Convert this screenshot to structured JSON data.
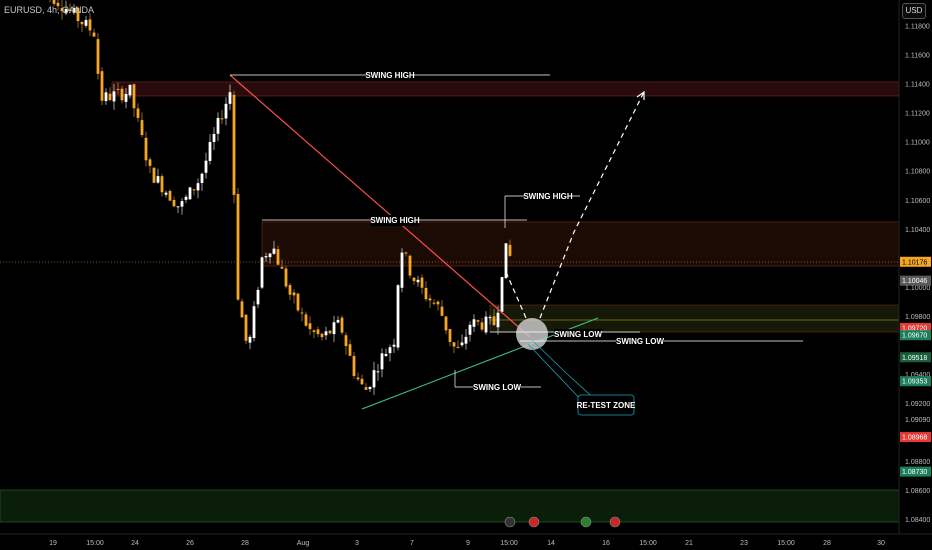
{
  "header": {
    "symbol": "EURUSD, 4h, OANDA",
    "currency": "USD"
  },
  "chart_data": {
    "type": "candlestick",
    "symbol": "EURUSD",
    "timeframe": "4h",
    "source": "OANDA",
    "ylim": [
      1.083,
      1.1198
    ],
    "y_ticks": [
      1.118,
      1.116,
      1.114,
      1.112,
      1.11,
      1.108,
      1.106,
      1.104,
      1.1,
      1.098,
      1.094,
      1.092,
      1.0909,
      1.088,
      1.086,
      1.084
    ],
    "x_ticks": [
      "19",
      "15:00",
      "24",
      "26",
      "28",
      "Aug",
      "3",
      "7",
      "9",
      "15:00",
      "14",
      "16",
      "15:00",
      "21",
      "23",
      "15:00",
      "28",
      "30"
    ],
    "price_tags": [
      {
        "value": "1.10176",
        "color": "#f5a623",
        "text_color": "#000000",
        "price": 1.10176
      },
      {
        "value": "1.10046",
        "color": "#5a5a5a",
        "text_color": "#ffffff",
        "price": 1.10046
      },
      {
        "value": "1.09720",
        "color": "#e53935",
        "text_color": "#ffffff",
        "price": 1.0972
      },
      {
        "value": "1.09670",
        "color": "#1b7f5a",
        "text_color": "#ffffff",
        "price": 1.0967
      },
      {
        "value": "1.09518",
        "color": "#1b5e3a",
        "text_color": "#ffffff",
        "price": 1.09518
      },
      {
        "value": "1.09353",
        "color": "#1b7f5a",
        "text_color": "#ffffff",
        "price": 1.09353
      },
      {
        "value": "1.08968",
        "color": "#e53935",
        "text_color": "#ffffff",
        "price": 1.08968
      },
      {
        "value": "1.08730",
        "color": "#1b7f5a",
        "text_color": "#ffffff",
        "price": 1.0873
      }
    ],
    "annotations": [
      "SWING HIGH",
      "SWING HIGH",
      "SWING HIGH",
      "SWING LOW",
      "SWING LOW",
      "SWING LOW",
      "RE-TEST ZONE"
    ],
    "colors": {
      "bull": "#ffffff",
      "bear": "#f5a623",
      "resistance_line": "#ff4d4d",
      "support_line": "#39c98a",
      "retest_zone": "#1aa3b8"
    },
    "grid": false
  }
}
